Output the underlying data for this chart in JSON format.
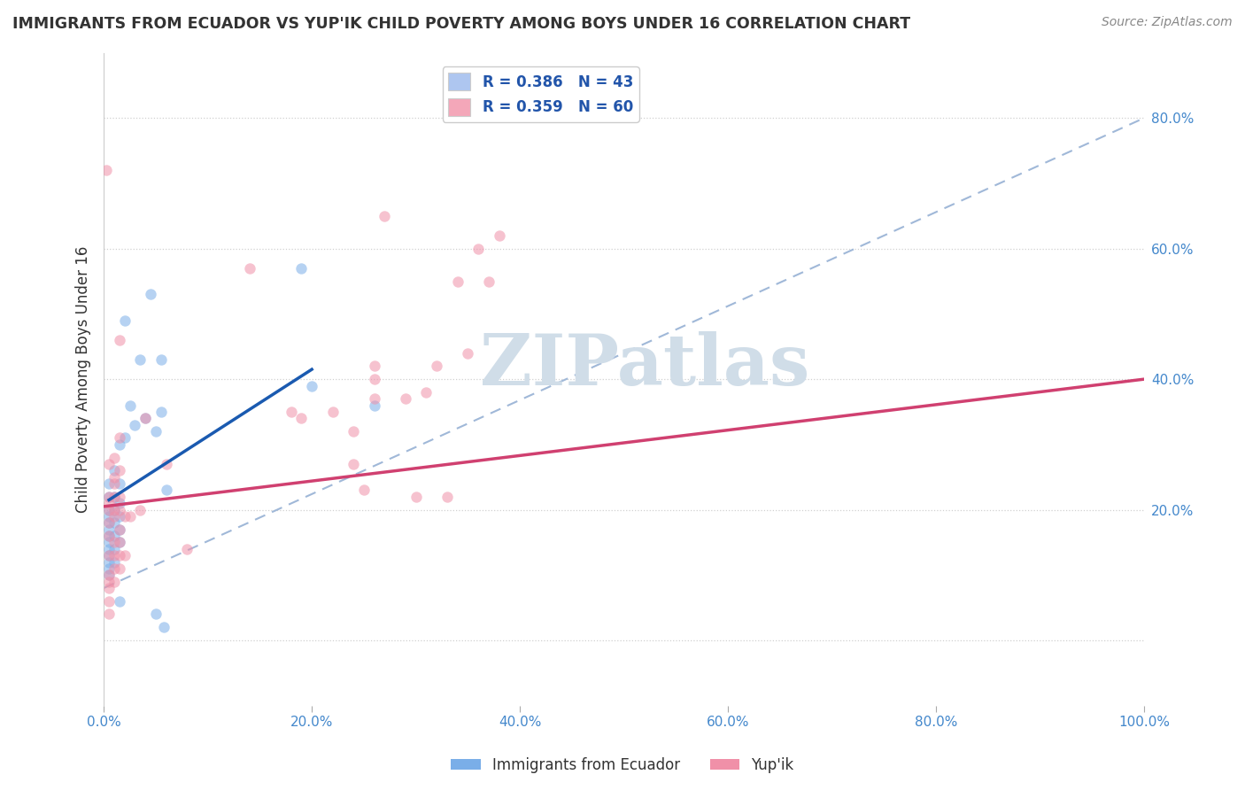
{
  "title": "IMMIGRANTS FROM ECUADOR VS YUP'IK CHILD POVERTY AMONG BOYS UNDER 16 CORRELATION CHART",
  "source": "Source: ZipAtlas.com",
  "ylabel": "Child Poverty Among Boys Under 16",
  "watermark": "ZIPatlas",
  "xlim": [
    0,
    1.0
  ],
  "ylim": [
    -0.1,
    0.9
  ],
  "xticks": [
    0,
    0.2,
    0.4,
    0.6,
    0.8,
    1.0
  ],
  "yticks": [
    0.0,
    0.2,
    0.4,
    0.6,
    0.8
  ],
  "xticklabels": [
    "0.0%",
    "20.0%",
    "40.0%",
    "60.0%",
    "80.0%",
    "100.0%"
  ],
  "yticklabels_right": [
    "20.0%",
    "40.0%",
    "60.0%",
    "80.0%"
  ],
  "yticks_right": [
    0.2,
    0.4,
    0.6,
    0.8
  ],
  "legend_entries": [
    {
      "label": "R = 0.386   N = 43",
      "color": "#aec6f0"
    },
    {
      "label": "R = 0.359   N = 60",
      "color": "#f4a7b9"
    }
  ],
  "blue_scatter": [
    [
      0.005,
      0.24
    ],
    [
      0.005,
      0.22
    ],
    [
      0.005,
      0.2
    ],
    [
      0.005,
      0.19
    ],
    [
      0.005,
      0.18
    ],
    [
      0.005,
      0.17
    ],
    [
      0.005,
      0.16
    ],
    [
      0.005,
      0.15
    ],
    [
      0.005,
      0.14
    ],
    [
      0.005,
      0.13
    ],
    [
      0.005,
      0.12
    ],
    [
      0.005,
      0.11
    ],
    [
      0.005,
      0.1
    ],
    [
      0.01,
      0.26
    ],
    [
      0.01,
      0.22
    ],
    [
      0.01,
      0.2
    ],
    [
      0.01,
      0.18
    ],
    [
      0.01,
      0.16
    ],
    [
      0.01,
      0.14
    ],
    [
      0.01,
      0.12
    ],
    [
      0.015,
      0.3
    ],
    [
      0.015,
      0.24
    ],
    [
      0.015,
      0.21
    ],
    [
      0.015,
      0.19
    ],
    [
      0.015,
      0.17
    ],
    [
      0.015,
      0.15
    ],
    [
      0.015,
      0.06
    ],
    [
      0.02,
      0.49
    ],
    [
      0.02,
      0.31
    ],
    [
      0.025,
      0.36
    ],
    [
      0.03,
      0.33
    ],
    [
      0.035,
      0.43
    ],
    [
      0.04,
      0.34
    ],
    [
      0.05,
      0.04
    ],
    [
      0.06,
      0.23
    ],
    [
      0.19,
      0.57
    ],
    [
      0.2,
      0.39
    ],
    [
      0.26,
      0.36
    ],
    [
      0.045,
      0.53
    ],
    [
      0.05,
      0.32
    ],
    [
      0.055,
      0.43
    ],
    [
      0.055,
      0.35
    ],
    [
      0.058,
      0.02
    ]
  ],
  "pink_scatter": [
    [
      0.002,
      0.72
    ],
    [
      0.005,
      0.27
    ],
    [
      0.005,
      0.22
    ],
    [
      0.005,
      0.21
    ],
    [
      0.005,
      0.2
    ],
    [
      0.005,
      0.18
    ],
    [
      0.005,
      0.16
    ],
    [
      0.005,
      0.13
    ],
    [
      0.005,
      0.1
    ],
    [
      0.005,
      0.09
    ],
    [
      0.005,
      0.08
    ],
    [
      0.005,
      0.06
    ],
    [
      0.005,
      0.04
    ],
    [
      0.01,
      0.28
    ],
    [
      0.01,
      0.25
    ],
    [
      0.01,
      0.24
    ],
    [
      0.01,
      0.22
    ],
    [
      0.01,
      0.2
    ],
    [
      0.01,
      0.19
    ],
    [
      0.01,
      0.15
    ],
    [
      0.01,
      0.13
    ],
    [
      0.01,
      0.11
    ],
    [
      0.01,
      0.09
    ],
    [
      0.015,
      0.46
    ],
    [
      0.015,
      0.31
    ],
    [
      0.015,
      0.26
    ],
    [
      0.015,
      0.22
    ],
    [
      0.015,
      0.2
    ],
    [
      0.015,
      0.17
    ],
    [
      0.015,
      0.15
    ],
    [
      0.015,
      0.13
    ],
    [
      0.015,
      0.11
    ],
    [
      0.02,
      0.19
    ],
    [
      0.02,
      0.13
    ],
    [
      0.025,
      0.19
    ],
    [
      0.035,
      0.2
    ],
    [
      0.04,
      0.34
    ],
    [
      0.06,
      0.27
    ],
    [
      0.08,
      0.14
    ],
    [
      0.14,
      0.57
    ],
    [
      0.18,
      0.35
    ],
    [
      0.19,
      0.34
    ],
    [
      0.22,
      0.35
    ],
    [
      0.24,
      0.32
    ],
    [
      0.24,
      0.27
    ],
    [
      0.25,
      0.23
    ],
    [
      0.26,
      0.42
    ],
    [
      0.26,
      0.4
    ],
    [
      0.26,
      0.37
    ],
    [
      0.27,
      0.65
    ],
    [
      0.29,
      0.37
    ],
    [
      0.3,
      0.22
    ],
    [
      0.31,
      0.38
    ],
    [
      0.32,
      0.42
    ],
    [
      0.33,
      0.22
    ],
    [
      0.34,
      0.55
    ],
    [
      0.35,
      0.44
    ],
    [
      0.36,
      0.6
    ],
    [
      0.37,
      0.55
    ],
    [
      0.38,
      0.62
    ]
  ],
  "blue_line_x": [
    0.005,
    0.2
  ],
  "blue_line_y": [
    0.215,
    0.415
  ],
  "pink_line_x": [
    0.0,
    1.0
  ],
  "pink_line_y": [
    0.205,
    0.4
  ],
  "dashed_line_x": [
    0.0,
    1.0
  ],
  "dashed_line_y": [
    0.08,
    0.8
  ],
  "blue_scatter_color": "#7aaee8",
  "pink_scatter_color": "#f090a8",
  "blue_line_color": "#1a5ab0",
  "pink_line_color": "#d04070",
  "dashed_line_color": "#a0b8d8",
  "title_color": "#333333",
  "source_color": "#888888",
  "ylabel_color": "#333333",
  "tick_color": "#4488cc",
  "grid_color": "#d0d0d0",
  "background_color": "#ffffff",
  "scatter_size": 80,
  "scatter_alpha": 0.55,
  "legend_text_color": "#2255aa",
  "watermark_color": "#d0dde8"
}
